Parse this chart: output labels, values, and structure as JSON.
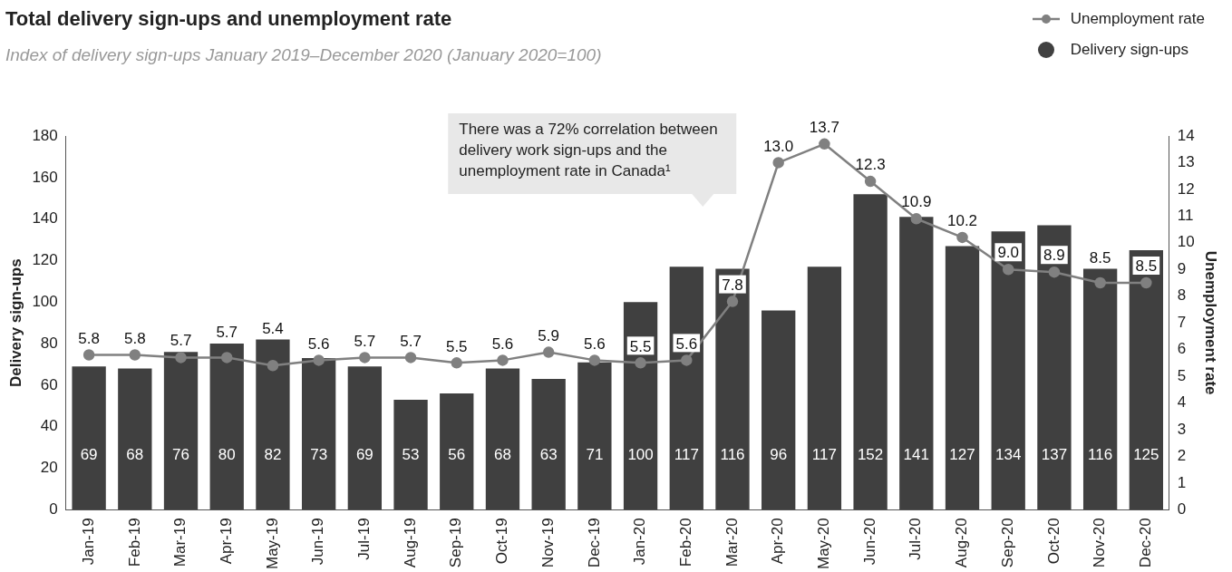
{
  "chart_data": {
    "type": "bar",
    "title": "Total delivery sign-ups and unemployment rate",
    "subtitle": "Index of delivery sign-ups January 2019–December 2020 (January 2020=100)",
    "ylabel": "Delivery sign-ups",
    "y2label": "Unemployment rate",
    "categories": [
      "Jan-19",
      "Feb-19",
      "Mar-19",
      "Apr-19",
      "May-19",
      "Jun-19",
      "Jul-19",
      "Aug-19",
      "Sep-19",
      "Oct-19",
      "Nov-19",
      "Dec-19",
      "Jan-20",
      "Feb-20",
      "Mar-20",
      "Apr-20",
      "May-20",
      "Jun-20",
      "Jul-20",
      "Aug-20",
      "Sep-20",
      "Oct-20",
      "Nov-20",
      "Dec-20"
    ],
    "series": [
      {
        "name": "Unemployment rate",
        "type": "line",
        "axis": "y2",
        "color": "#808080",
        "marker": "circle",
        "values": [
          5.8,
          5.8,
          5.7,
          5.7,
          5.4,
          5.6,
          5.7,
          5.7,
          5.5,
          5.6,
          5.9,
          5.6,
          5.5,
          5.6,
          7.8,
          13.0,
          13.7,
          12.3,
          10.9,
          10.2,
          9.0,
          8.9,
          8.5,
          8.5
        ],
        "value_labels": [
          "5.8",
          "5.8",
          "5.7",
          "5.7",
          "5.4",
          "5.6",
          "5.7",
          "5.7",
          "5.5",
          "5.6",
          "5.9",
          "5.6",
          "5.5",
          "5.6",
          "7.8",
          "13.0",
          "13.7",
          "12.3",
          "10.9",
          "10.2",
          "9.0",
          "8.9",
          "8.5",
          "8.5"
        ]
      },
      {
        "name": "Delivery sign-ups",
        "color": "#404040",
        "values": [
          69,
          68,
          76,
          80,
          82,
          73,
          69,
          53,
          56,
          68,
          63,
          71,
          100,
          117,
          116,
          96,
          117,
          152,
          141,
          127,
          134,
          137,
          116,
          125
        ],
        "value_labels": [
          "69",
          "68",
          "76",
          "80",
          "82",
          "73",
          "69",
          "53",
          "56",
          "68",
          "63",
          "71",
          "100",
          "117",
          "116",
          "96",
          "117",
          "152",
          "141",
          "127",
          "134",
          "137",
          "116",
          "125"
        ]
      }
    ],
    "ylim": [
      0,
      180
    ],
    "yticks": [
      0,
      20,
      40,
      60,
      80,
      100,
      120,
      140,
      160,
      180
    ],
    "y2lim": [
      0,
      14
    ],
    "y2ticks": [
      0,
      1,
      2,
      3,
      4,
      5,
      6,
      7,
      8,
      9,
      10,
      11,
      12,
      13,
      14
    ],
    "grid": false,
    "legend": "top right",
    "annotations": [
      "There was a 72% correlation between delivery work sign-ups and the unemployment rate in Canada¹"
    ]
  }
}
